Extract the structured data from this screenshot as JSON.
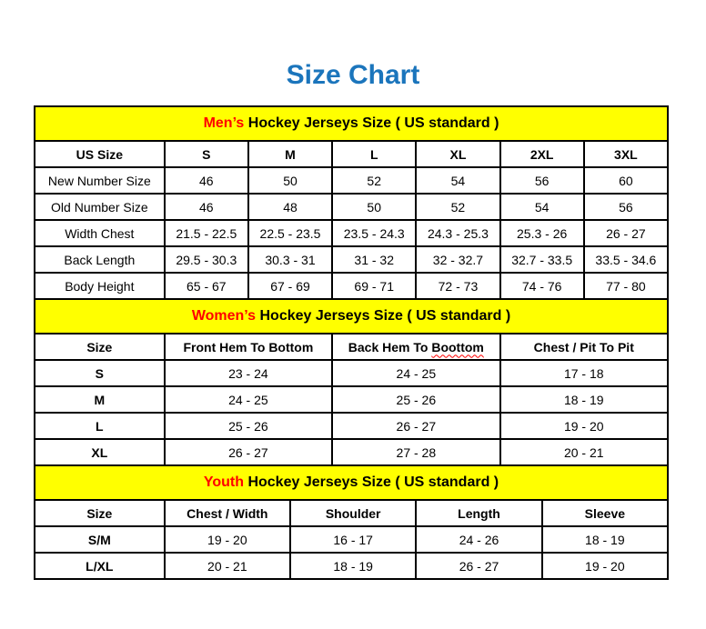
{
  "title": "Size Chart",
  "colors": {
    "title_blue": "#1b75bc",
    "banner_yellow": "#ffff00",
    "highlight_red": "#ff0000",
    "border_black": "#000000"
  },
  "sections": [
    {
      "id": "mens",
      "banner": {
        "highlight": "Men’s",
        "rest": " Hockey Jerseys Size ( US standard )"
      },
      "bold_row_labels": false,
      "columns": [
        "US Size",
        "S",
        "M",
        "L",
        "XL",
        "2XL",
        "3XL"
      ],
      "rows": [
        [
          "New Number Size",
          "46",
          "50",
          "52",
          "54",
          "56",
          "60"
        ],
        [
          "Old Number Size",
          "46",
          "48",
          "50",
          "52",
          "54",
          "56"
        ],
        [
          "Width Chest",
          "21.5 - 22.5",
          "22.5 - 23.5",
          "23.5 - 24.3",
          "24.3 - 25.3",
          "25.3 - 26",
          "26 - 27"
        ],
        [
          "Back Length",
          "29.5 - 30.3",
          "30.3 - 31",
          "31 - 32",
          "32 - 32.7",
          "32.7 - 33.5",
          "33.5 - 34.6"
        ],
        [
          "Body Height",
          "65 - 67",
          "67 - 69",
          "69 - 71",
          "72 - 73",
          "74 - 76",
          "77 - 80"
        ]
      ]
    },
    {
      "id": "womens",
      "banner": {
        "highlight": "Women’s",
        "rest": " Hockey Jerseys Size ( US standard )"
      },
      "bold_row_labels": true,
      "columns": [
        "Size",
        "Front Hem To Bottom",
        {
          "pre": "Back Hem To ",
          "squiggle": "Boottom"
        },
        "Chest / Pit To Pit"
      ],
      "rows": [
        [
          "S",
          "23 - 24",
          "24 - 25",
          "17 - 18"
        ],
        [
          "M",
          "24 - 25",
          "25 - 26",
          "18 - 19"
        ],
        [
          "L",
          "25 - 26",
          "26 - 27",
          "19 - 20"
        ],
        [
          "XL",
          "26 - 27",
          "27 - 28",
          "20 - 21"
        ]
      ]
    },
    {
      "id": "youth",
      "banner": {
        "highlight": "Youth",
        "rest": " Hockey Jerseys Size ( US standard )"
      },
      "bold_row_labels": true,
      "columns": [
        "Size",
        "Chest / Width",
        "Shoulder",
        "Length",
        "Sleeve"
      ],
      "rows": [
        [
          "S/M",
          "19 - 20",
          "16 - 17",
          "24 - 26",
          "18 - 19"
        ],
        [
          "L/XL",
          "20 - 21",
          "18 - 19",
          "26 - 27",
          "19 - 20"
        ]
      ]
    }
  ]
}
